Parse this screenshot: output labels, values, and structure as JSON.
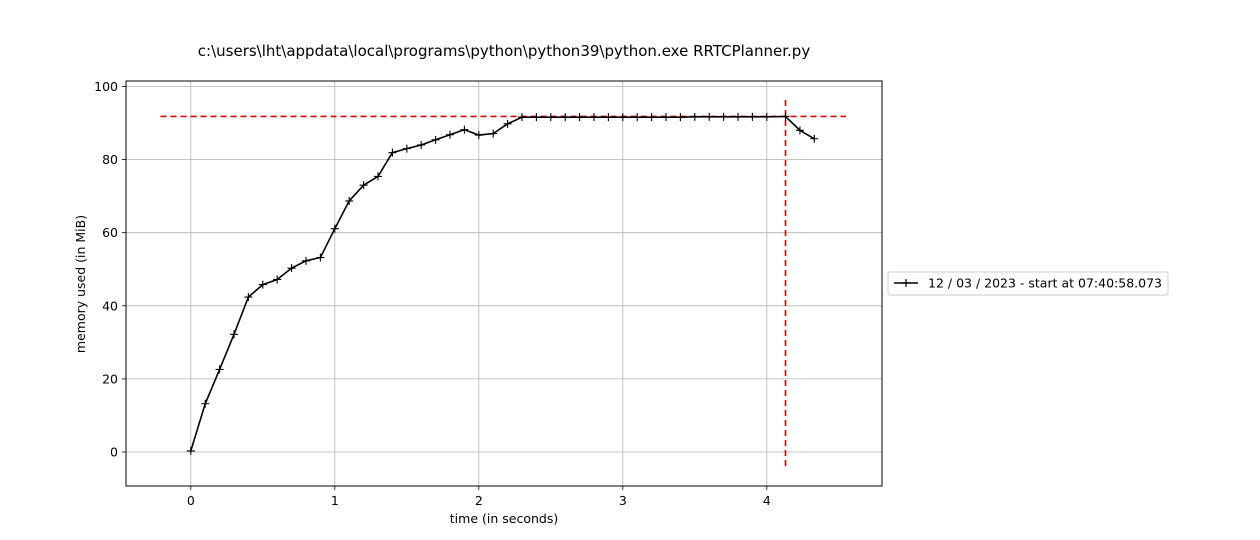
{
  "chart_data": {
    "type": "line",
    "title": "c:\\users\\lht\\appdata\\local\\programs\\python\\python39\\python.exe RRTCPlanner.py",
    "xlabel": "time (in seconds)",
    "ylabel": "memory used (in MiB)",
    "xlim": [
      -0.45,
      4.8
    ],
    "ylim": [
      -9.3,
      101.5
    ],
    "xticks": [
      0,
      1,
      2,
      3,
      4
    ],
    "yticks": [
      0,
      20,
      40,
      60,
      80,
      100
    ],
    "grid": true,
    "legend_position": "outside-right",
    "series": [
      {
        "name": "12 / 03 / 2023 - start at 07:40:58.073",
        "color": "#000000",
        "marker": "+",
        "x": [
          0.0,
          0.1,
          0.2,
          0.3,
          0.4,
          0.5,
          0.6,
          0.7,
          0.8,
          0.9,
          1.0,
          1.1,
          1.2,
          1.3,
          1.4,
          1.5,
          1.6,
          1.7,
          1.8,
          1.9,
          2.0,
          2.1,
          2.2,
          2.3,
          2.4,
          2.5,
          2.6,
          2.7,
          2.8,
          2.9,
          3.0,
          3.1,
          3.2,
          3.3,
          3.4,
          3.5,
          3.6,
          3.7,
          3.8,
          3.9,
          4.0,
          4.13,
          4.23,
          4.33
        ],
        "y": [
          0.3,
          13.2,
          22.6,
          32.2,
          42.4,
          45.8,
          47.2,
          50.3,
          52.3,
          53.2,
          61.1,
          68.7,
          73.0,
          75.4,
          81.9,
          83.0,
          84.0,
          85.4,
          86.8,
          88.2,
          86.7,
          87.1,
          89.8,
          91.6,
          91.6,
          91.6,
          91.6,
          91.6,
          91.6,
          91.6,
          91.6,
          91.6,
          91.6,
          91.6,
          91.6,
          91.7,
          91.7,
          91.7,
          91.7,
          91.7,
          91.7,
          91.8,
          88.0,
          85.7
        ]
      }
    ],
    "reference_lines": {
      "color": "#dd0000",
      "horizontal_y": 91.8,
      "horizontal_x_range": [
        -0.21,
        4.55
      ],
      "vertical_x": 4.13,
      "vertical_y_range": [
        -4.3,
        96.3
      ]
    }
  }
}
